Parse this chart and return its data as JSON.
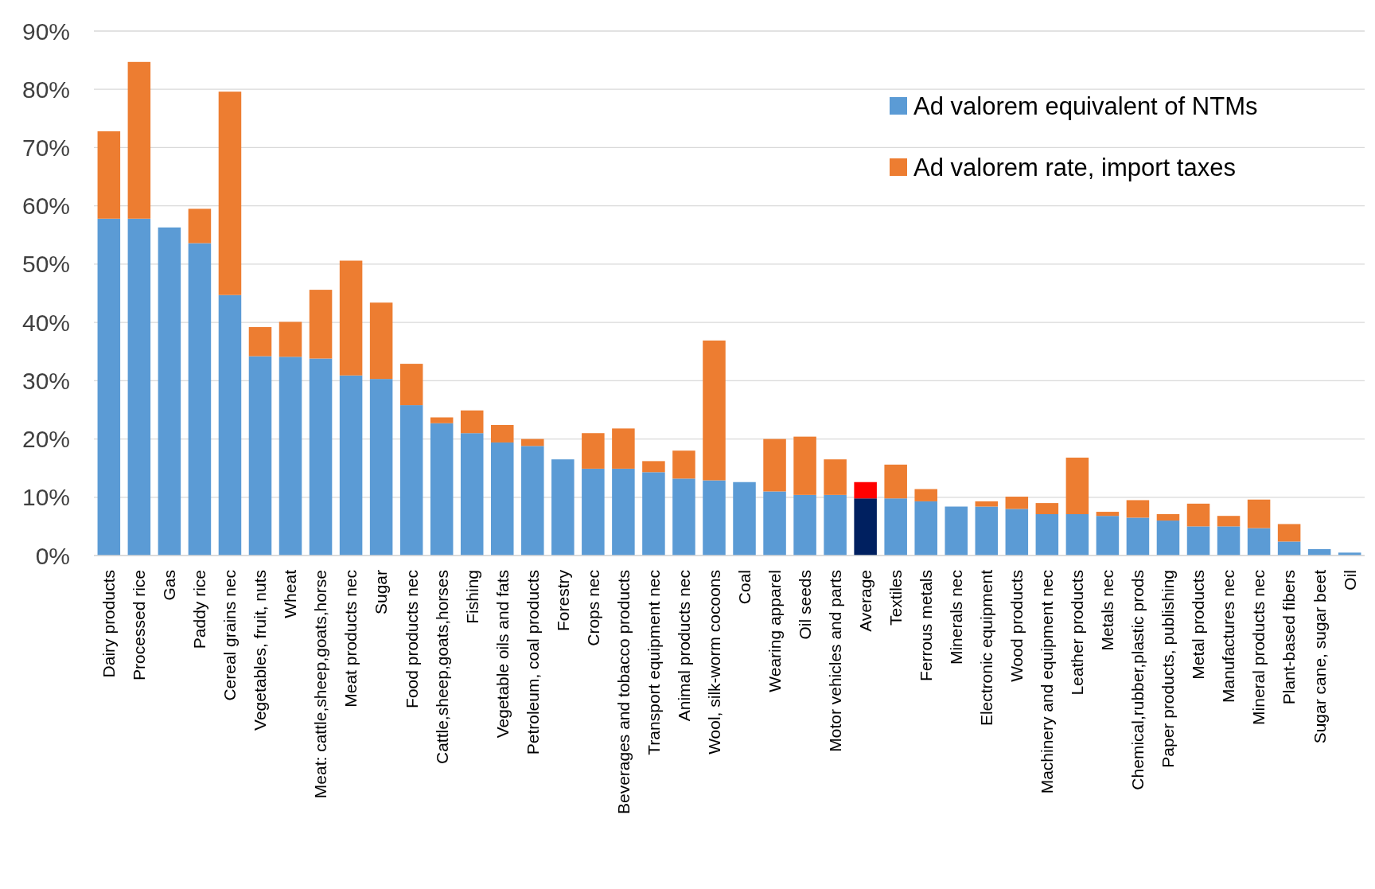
{
  "chart_data": {
    "type": "bar",
    "stacked": true,
    "categories": [
      "Dairy products",
      "Processed rice",
      "Gas",
      "Paddy rice",
      "Cereal grains nec",
      "Vegetables, fruit, nuts",
      "Wheat",
      "Meat: cattle,sheep,goats,horse",
      "Meat products nec",
      "Sugar",
      "Food products nec",
      "Cattle,sheep,goats,horses",
      "Fishing",
      "Vegetable oils and fats",
      "Petroleum, coal products",
      "Forestry",
      "Crops nec",
      "Beverages and tobacco products",
      "Transport equipment nec",
      "Animal products nec",
      "Wool, silk-worm cocoons",
      "Coal",
      "Wearing apparel",
      "Oil seeds",
      "Motor vehicles and parts",
      "Average",
      "Textiles",
      "Ferrous metals",
      "Minerals nec",
      "Electronic equipment",
      "Wood products",
      "Machinery and equipment nec",
      "Leather products",
      "Metals nec",
      "Chemical,rubber,plastic prods",
      "Paper products, publishing",
      "Metal products",
      "Manufactures nec",
      "Mineral products nec",
      "Plant-based fibers",
      "Sugar cane, sugar beet",
      "Oil"
    ],
    "series": [
      {
        "name": "Ad valorem equivalent of NTMs",
        "color": "#5b9bd5",
        "colors": [
          "#5b9bd5",
          "#5b9bd5",
          "#5b9bd5",
          "#5b9bd5",
          "#5b9bd5",
          "#5b9bd5",
          "#5b9bd5",
          "#5b9bd5",
          "#5b9bd5",
          "#5b9bd5",
          "#5b9bd5",
          "#5b9bd5",
          "#5b9bd5",
          "#5b9bd5",
          "#5b9bd5",
          "#5b9bd5",
          "#5b9bd5",
          "#5b9bd5",
          "#5b9bd5",
          "#5b9bd5",
          "#5b9bd5",
          "#5b9bd5",
          "#5b9bd5",
          "#5b9bd5",
          "#5b9bd5",
          "#002060",
          "#5b9bd5",
          "#5b9bd5",
          "#5b9bd5",
          "#5b9bd5",
          "#5b9bd5",
          "#5b9bd5",
          "#5b9bd5",
          "#5b9bd5",
          "#5b9bd5",
          "#5b9bd5",
          "#5b9bd5",
          "#5b9bd5",
          "#5b9bd5",
          "#5b9bd5",
          "#5b9bd5",
          "#5b9bd5"
        ],
        "values": [
          57.8,
          57.8,
          56.3,
          53.6,
          44.7,
          34.2,
          34.1,
          33.8,
          30.9,
          30.3,
          25.8,
          22.7,
          21.0,
          19.4,
          18.8,
          16.5,
          14.9,
          14.9,
          14.3,
          13.2,
          12.9,
          12.6,
          11.0,
          10.4,
          10.4,
          9.8,
          9.8,
          9.3,
          8.4,
          8.4,
          8.0,
          7.1,
          7.1,
          6.8,
          6.5,
          6.0,
          5.0,
          5.0,
          4.7,
          2.4,
          1.1,
          0.5
        ]
      },
      {
        "name": "Ad valorem rate, import taxes",
        "color": "#ed7d31",
        "colors": [
          "#ed7d31",
          "#ed7d31",
          "#ed7d31",
          "#ed7d31",
          "#ed7d31",
          "#ed7d31",
          "#ed7d31",
          "#ed7d31",
          "#ed7d31",
          "#ed7d31",
          "#ed7d31",
          "#ed7d31",
          "#ed7d31",
          "#ed7d31",
          "#ed7d31",
          "#ed7d31",
          "#ed7d31",
          "#ed7d31",
          "#ed7d31",
          "#ed7d31",
          "#ed7d31",
          "#ed7d31",
          "#ed7d31",
          "#ed7d31",
          "#ed7d31",
          "#ff0000",
          "#ed7d31",
          "#ed7d31",
          "#ed7d31",
          "#ed7d31",
          "#ed7d31",
          "#ed7d31",
          "#ed7d31",
          "#ed7d31",
          "#ed7d31",
          "#ed7d31",
          "#ed7d31",
          "#ed7d31",
          "#ed7d31",
          "#ed7d31",
          "#ed7d31",
          "#ed7d31"
        ],
        "values": [
          15.0,
          26.9,
          null,
          5.9,
          34.9,
          5.0,
          6.0,
          11.8,
          19.7,
          13.1,
          7.1,
          1.0,
          3.9,
          3.0,
          1.2,
          null,
          6.1,
          6.9,
          1.9,
          4.8,
          24.0,
          null,
          9.0,
          10.0,
          6.1,
          2.8,
          5.8,
          2.1,
          null,
          0.9,
          2.1,
          1.9,
          9.7,
          0.7,
          3.0,
          1.1,
          3.9,
          1.8,
          4.9,
          3.0,
          null,
          null
        ]
      }
    ],
    "ylim": [
      0,
      90
    ],
    "yticks": [
      {
        "value": 0,
        "label": "0%"
      },
      {
        "value": 10,
        "label": "10%"
      },
      {
        "value": 20,
        "label": "20%"
      },
      {
        "value": 30,
        "label": "30%"
      },
      {
        "value": 40,
        "label": "40%"
      },
      {
        "value": 50,
        "label": "50%"
      },
      {
        "value": 60,
        "label": "60%"
      },
      {
        "value": 70,
        "label": "70%"
      },
      {
        "value": 80,
        "label": "80%"
      },
      {
        "value": 90,
        "label": "90%"
      }
    ],
    "grid": "y",
    "legend": "top right"
  }
}
